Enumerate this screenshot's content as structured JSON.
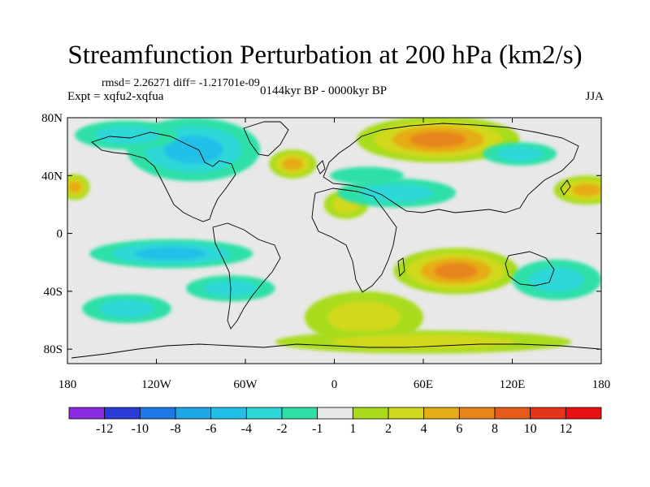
{
  "title": "Streamfunction Perturbation at 200 hPa (km2/s)",
  "stats": "rmsd= 2.26271  diff= -1.21701e-09",
  "experiment": "Expt = xqfu2-xqfua",
  "period": "0144kyr BP - 0000kyr BP",
  "season": "JJA",
  "lat_ticks": [
    {
      "value": 80,
      "label": "80N"
    },
    {
      "value": 40,
      "label": "40N"
    },
    {
      "value": 0,
      "label": "0"
    },
    {
      "value": -40,
      "label": "40S"
    },
    {
      "value": -80,
      "label": "80S"
    }
  ],
  "lon_ticks": [
    {
      "value": -180,
      "label": "180"
    },
    {
      "value": -120,
      "label": "120W"
    },
    {
      "value": -60,
      "label": "60W"
    },
    {
      "value": 0,
      "label": "0"
    },
    {
      "value": 60,
      "label": "60E"
    },
    {
      "value": 120,
      "label": "120E"
    },
    {
      "value": 180,
      "label": "180"
    }
  ],
  "colorbar": {
    "labels": [
      "-12",
      "-10",
      "-8",
      "-6",
      "-4",
      "-2",
      "-1",
      "1",
      "2",
      "4",
      "6",
      "8",
      "10",
      "12"
    ],
    "colors": [
      "#8a2be2",
      "#2b3bd6",
      "#1e78e6",
      "#1fa6e6",
      "#22c0e8",
      "#2dd8d8",
      "#2ee0a8",
      "#e8e8e8",
      "#a8dc1c",
      "#d2d81e",
      "#e6ac14",
      "#e8841a",
      "#e65a1a",
      "#e6341a",
      "#e81010"
    ]
  },
  "features": [
    {
      "name": "positive-anomaly-eurasia-north",
      "lon": 70,
      "lat": 65,
      "rx": 55,
      "ry": 16,
      "levels": [
        1,
        2,
        4,
        6
      ]
    },
    {
      "name": "positive-anomaly-east-atlantic",
      "lon": -28,
      "lat": 48,
      "rx": 16,
      "ry": 10,
      "levels": [
        1,
        2,
        4
      ]
    },
    {
      "name": "positive-anomaly-africa",
      "lon": 8,
      "lat": 20,
      "rx": 15,
      "ry": 10,
      "levels": [
        1,
        2
      ]
    },
    {
      "name": "positive-anomaly-west-pacific",
      "lon": 170,
      "lat": 30,
      "rx": 22,
      "ry": 10,
      "levels": [
        1,
        2,
        4
      ]
    },
    {
      "name": "positive-anomaly-east-pacific",
      "lon": -175,
      "lat": 32,
      "rx": 10,
      "ry": 9,
      "levels": [
        1,
        2,
        4
      ]
    },
    {
      "name": "positive-anomaly-indian-ocean",
      "lon": 82,
      "lat": -26,
      "rx": 42,
      "ry": 16,
      "levels": [
        1,
        2,
        4,
        6
      ]
    },
    {
      "name": "positive-anomaly-south-atlantic",
      "lon": 20,
      "lat": -58,
      "rx": 40,
      "ry": 18,
      "levels": [
        1,
        2
      ]
    },
    {
      "name": "positive-anomaly-southern-ocean",
      "lon": 60,
      "lat": -75,
      "rx": 100,
      "ry": 8,
      "levels": [
        1,
        2
      ]
    },
    {
      "name": "negative-anomaly-north-america",
      "lon": -95,
      "lat": 58,
      "rx": 45,
      "ry": 22,
      "levels": [
        -1,
        -2,
        -4
      ]
    },
    {
      "name": "negative-anomaly-north-pacific",
      "lon": -140,
      "lat": 68,
      "rx": 35,
      "ry": 10,
      "levels": [
        -1,
        -2
      ]
    },
    {
      "name": "negative-anomaly-tropical-pacific",
      "lon": -110,
      "lat": -14,
      "rx": 55,
      "ry": 10,
      "levels": [
        -1,
        -2,
        -4
      ]
    },
    {
      "name": "negative-anomaly-south-america",
      "lon": -70,
      "lat": -38,
      "rx": 30,
      "ry": 9,
      "levels": [
        -1,
        -2
      ]
    },
    {
      "name": "negative-anomaly-south-pacific",
      "lon": -140,
      "lat": -52,
      "rx": 30,
      "ry": 10,
      "levels": [
        -1,
        -2
      ]
    },
    {
      "name": "negative-anomaly-tropical-indian",
      "lon": 42,
      "lat": 28,
      "rx": 40,
      "ry": 10,
      "levels": [
        -1,
        -2
      ]
    },
    {
      "name": "negative-anomaly-north-africa",
      "lon": 22,
      "lat": 40,
      "rx": 25,
      "ry": 6,
      "levels": [
        -1
      ]
    },
    {
      "name": "negative-anomaly-east-asia",
      "lon": 125,
      "lat": 55,
      "rx": 25,
      "ry": 8,
      "levels": [
        -1,
        -2
      ]
    },
    {
      "name": "negative-anomaly-south-indian",
      "lon": 150,
      "lat": -32,
      "rx": 30,
      "ry": 14,
      "levels": [
        -1,
        -2
      ]
    }
  ]
}
